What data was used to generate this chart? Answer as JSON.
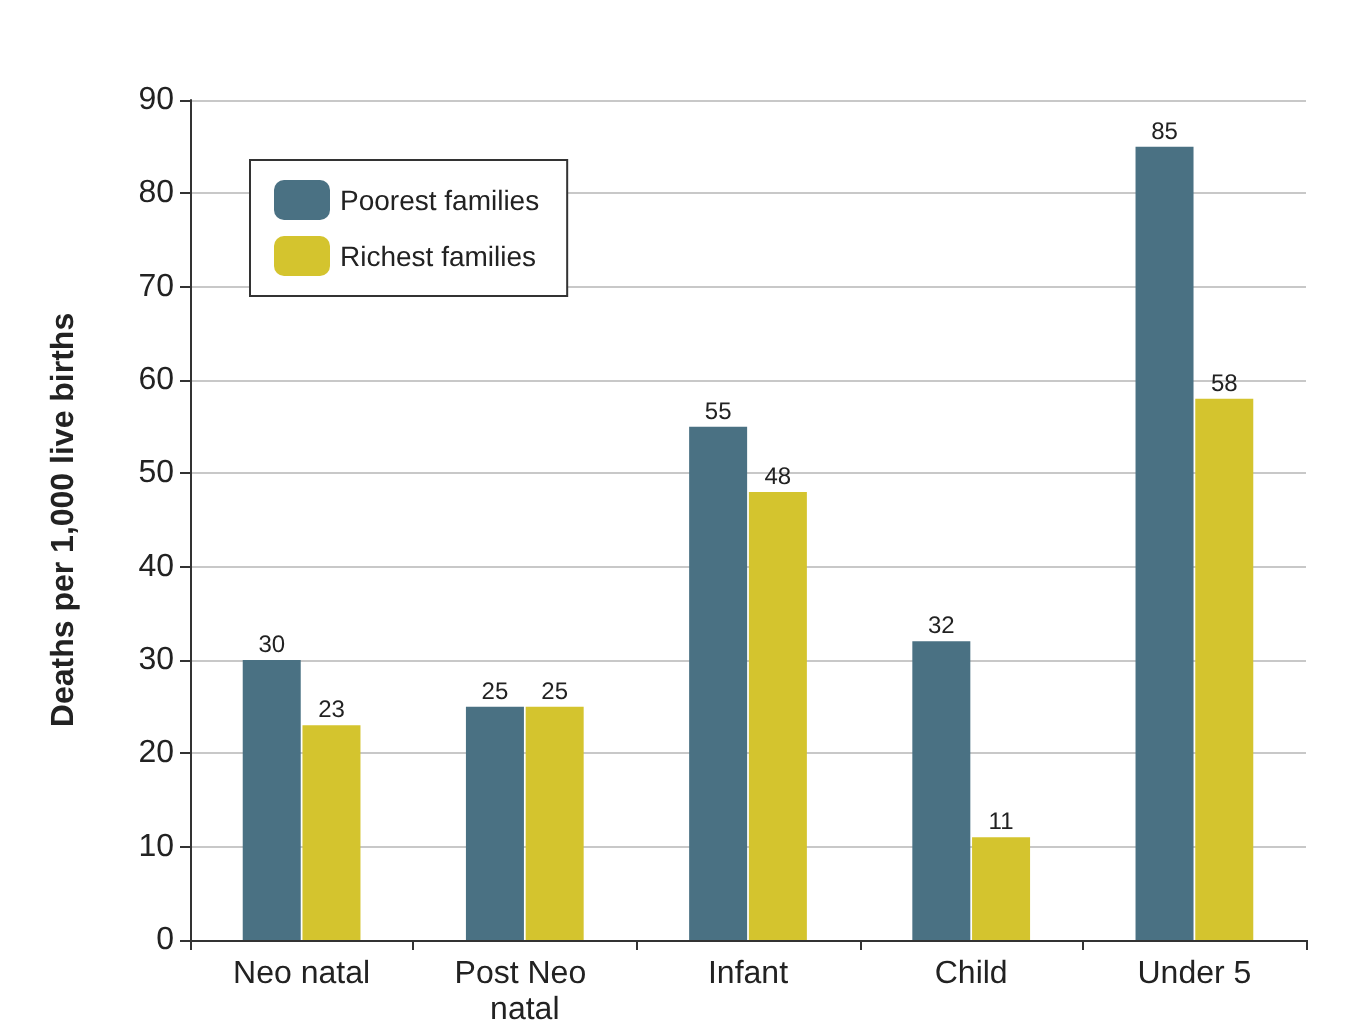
{
  "chart_data": {
    "type": "bar",
    "ylabel": "Deaths per 1,000 live births",
    "categories": [
      "Neo natal",
      "Post Neo natal",
      "Infant",
      "Child",
      "Under 5"
    ],
    "series": [
      {
        "name": "Poorest families",
        "color": "#4a7183",
        "values": [
          30,
          25,
          55,
          32,
          85
        ]
      },
      {
        "name": "Richest families",
        "color": "#d4c42e",
        "values": [
          23,
          25,
          48,
          11,
          58
        ]
      }
    ],
    "ylim": [
      0,
      90
    ],
    "yticks": [
      0,
      10,
      20,
      30,
      40,
      50,
      60,
      70,
      80,
      90
    ],
    "grid": "y",
    "legend": "top left",
    "data_labels": true
  }
}
